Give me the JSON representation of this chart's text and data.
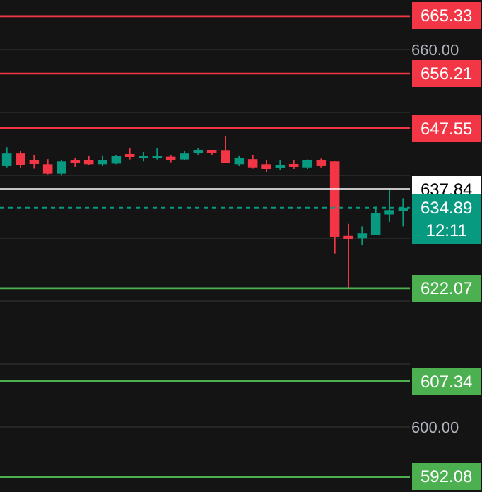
{
  "chart_data": {
    "type": "candlestick",
    "categories": [
      null,
      null,
      null,
      null,
      null,
      null,
      null,
      null,
      null,
      null,
      null,
      null,
      null,
      null,
      null,
      null,
      null,
      null,
      null,
      null,
      null,
      null,
      null,
      null,
      null,
      null,
      null,
      null,
      null,
      null
    ],
    "ohlc": [
      [
        641.5,
        644.5,
        641.3,
        643.5
      ],
      [
        643.5,
        643.9,
        641.3,
        641.65
      ],
      [
        642.4,
        643.3,
        641.1,
        642.0
      ],
      [
        641.8,
        642.6,
        640.2,
        640.3
      ],
      [
        640.3,
        642.4,
        640.0,
        642.25
      ],
      [
        642.3,
        642.8,
        641.4,
        642.1
      ],
      [
        642.4,
        643.2,
        641.65,
        641.8
      ],
      [
        641.8,
        643.2,
        641.5,
        642.4
      ],
      [
        641.9,
        643.3,
        641.8,
        643.15
      ],
      [
        643.3,
        644.3,
        642.55,
        643.0
      ],
      [
        642.8,
        643.75,
        642.25,
        643.0
      ],
      [
        642.8,
        644.3,
        642.55,
        643.0
      ],
      [
        643.0,
        643.3,
        642.1,
        642.4
      ],
      [
        642.55,
        643.9,
        642.4,
        643.5
      ],
      [
        643.75,
        644.35,
        643.3,
        644.05
      ],
      [
        644.05,
        644.05,
        643.3,
        643.75
      ],
      [
        644.05,
        646.3,
        641.95,
        641.95
      ],
      [
        641.8,
        643.2,
        641.5,
        642.8
      ],
      [
        642.6,
        643.3,
        641.1,
        641.3
      ],
      [
        641.8,
        642.4,
        640.5,
        641.05
      ],
      [
        641.3,
        642.4,
        640.9,
        641.65
      ],
      [
        641.8,
        642.4,
        641.05,
        641.5
      ],
      [
        641.3,
        642.55,
        641.05,
        642.4
      ],
      [
        642.4,
        642.7,
        641.3,
        641.5
      ],
      [
        642.25,
        642.25,
        627.6,
        630.25
      ],
      [
        630.4,
        632.3,
        622.15,
        630.0
      ],
      [
        630.0,
        631.9,
        628.9,
        630.8
      ],
      [
        630.6,
        635.05,
        630.6,
        634.0
      ],
      [
        633.8,
        637.7,
        632.65,
        634.5
      ],
      [
        634.5,
        636.4,
        631.9,
        634.89
      ]
    ],
    "ylim": [
      589.7,
      667.9
    ],
    "yticks": [
      {
        "value": 600,
        "label": "600.00"
      },
      {
        "value": 610,
        "label": null
      },
      {
        "value": 620,
        "label": null
      },
      {
        "value": 630,
        "label": null
      },
      {
        "value": 640,
        "label": null
      },
      {
        "value": 650,
        "label": null
      },
      {
        "value": 660,
        "label": "660.00"
      }
    ],
    "tick_labels": "y",
    "grid": "y",
    "ref_lines": [
      {
        "axis": "y",
        "value": 665.33,
        "label": "665.33",
        "color": "#f23645"
      },
      {
        "axis": "y",
        "value": 656.21,
        "label": "656.21",
        "color": "#f23645"
      },
      {
        "axis": "y",
        "value": 647.55,
        "label": "647.55",
        "color": "#f23645"
      },
      {
        "axis": "y",
        "value": 637.84,
        "label": "637.84",
        "color": "#ffffff"
      },
      {
        "axis": "y",
        "value": 634.89,
        "label": "634.89",
        "color": "#089981",
        "line_style": "dotted"
      },
      {
        "axis": "y",
        "value": 622.07,
        "label": "622.07",
        "color": "#4caf50"
      },
      {
        "axis": "y",
        "value": 607.34,
        "label": "607.34",
        "color": "#4caf50"
      },
      {
        "axis": "y",
        "value": 592.08,
        "label": "592.08",
        "color": "#4caf50"
      }
    ],
    "annotations": [
      "12:11"
    ]
  }
}
